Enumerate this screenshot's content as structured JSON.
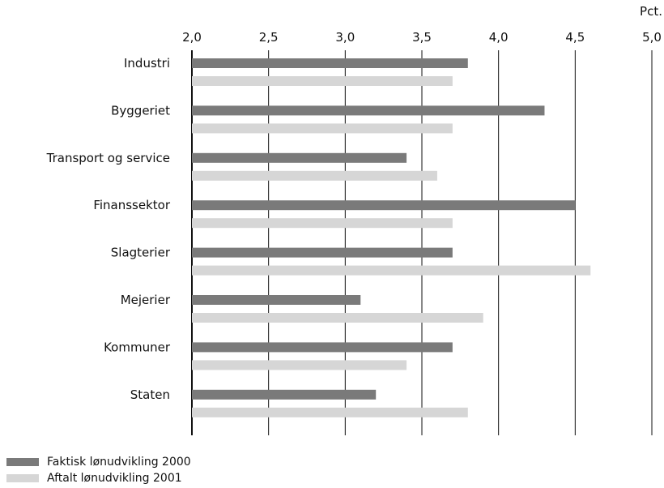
{
  "chart_data": {
    "type": "bar",
    "orientation": "horizontal",
    "unit_label": "Pct.",
    "xlim": [
      2.0,
      5.0
    ],
    "xticks": [
      2.0,
      2.5,
      3.0,
      3.5,
      4.0,
      4.5,
      5.0
    ],
    "xtick_labels": [
      "2,0",
      "2,5",
      "3,0",
      "3,5",
      "4,0",
      "4,5",
      "5,0"
    ],
    "grid": true,
    "legend_position": "bottom-left",
    "categories": [
      "Industri",
      "Byggeriet",
      "Transport og service",
      "Finanssektor",
      "Slagterier",
      "Mejerier",
      "Kommuner",
      "Staten"
    ],
    "series": [
      {
        "name": "Faktisk lønudvikling 2000",
        "color": "#7a7a7a",
        "values": [
          3.8,
          4.3,
          3.4,
          4.5,
          3.7,
          3.1,
          3.7,
          3.2
        ]
      },
      {
        "name": "Aftalt lønudvikling 2001",
        "color": "#d6d6d6",
        "values": [
          3.7,
          3.7,
          3.6,
          3.7,
          4.6,
          3.9,
          3.4,
          3.8
        ]
      }
    ]
  }
}
